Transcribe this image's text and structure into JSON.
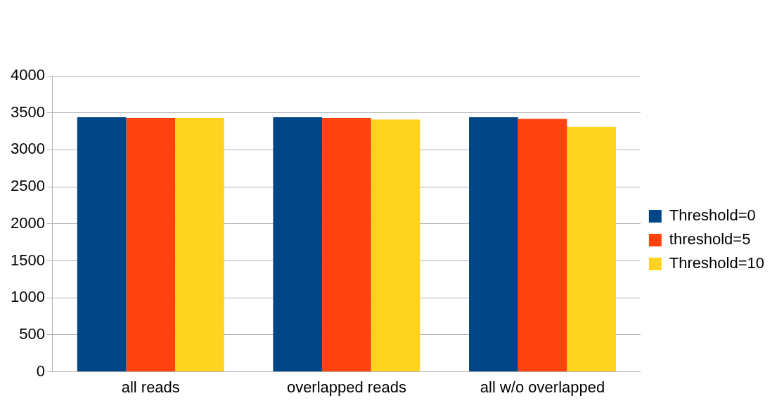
{
  "chart_data": {
    "type": "bar",
    "categories": [
      "all reads",
      "overlapped reads",
      "all w/o overlapped"
    ],
    "series": [
      {
        "name": "Threshold=0",
        "color": "#004586",
        "values": [
          3440,
          3440,
          3440
        ]
      },
      {
        "name": "threshold=5",
        "color": "#ff420e",
        "values": [
          3430,
          3430,
          3420
        ]
      },
      {
        "name": "Threshold=10",
        "color": "#ffd320",
        "values": [
          3430,
          3410,
          3310
        ]
      }
    ],
    "ylim": [
      0,
      4000
    ],
    "yticks": [
      0,
      500,
      1000,
      1500,
      2000,
      2500,
      3000,
      3500,
      4000
    ],
    "grid": "y",
    "legend": "right"
  }
}
